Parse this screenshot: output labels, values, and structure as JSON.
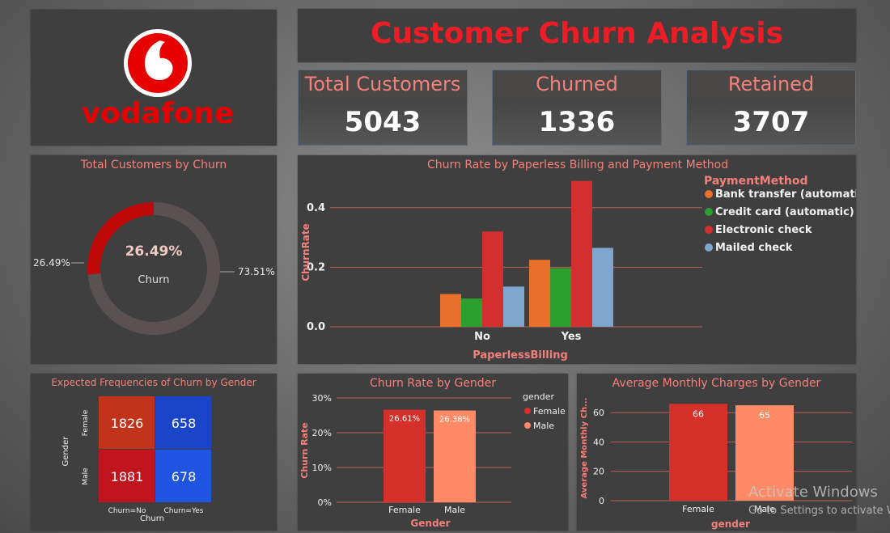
{
  "header": {
    "logo_text": "vodafone",
    "title": "Customer Churn Analysis"
  },
  "kpis": [
    {
      "label": "Total Customers",
      "value": "5043"
    },
    {
      "label": "Churned",
      "value": "1336"
    },
    {
      "label": "Retained",
      "value": "3707"
    }
  ],
  "colors": {
    "accent_red": "#ee1c25",
    "title_pink": "#f4807a",
    "bank_transfer": "#e8702a",
    "credit_card": "#2ca02c",
    "electronic_check": "#d32f2f",
    "mailed_check": "#7ea6cf",
    "female": "#d6302b",
    "male": "#ff8a65"
  },
  "watermark": {
    "line1": "Activate Windows",
    "line2": "Go to Settings to activate W"
  },
  "chart_data": [
    {
      "id": "donut",
      "type": "pie",
      "title": "Total Customers by Churn",
      "center_value": "26.49%",
      "center_label": "Churn",
      "slices": [
        {
          "value": 26.49,
          "label": "26.49%"
        },
        {
          "value": 73.51,
          "label": "73.51%"
        }
      ]
    },
    {
      "id": "paperless",
      "type": "bar",
      "title": "Churn Rate by Paperless Billing and Payment Method",
      "xlabel": "PaperlessBilling",
      "ylabel": "ChurnRate",
      "legend_title": "PaymentMethod",
      "categories": [
        "No",
        "Yes"
      ],
      "ylim": [
        0,
        0.5
      ],
      "yticks": [
        0.0,
        0.2,
        0.4
      ],
      "ytick_labels": [
        "0.0",
        "0.2",
        "0.4"
      ],
      "series": [
        {
          "name": "Bank transfer (automatic)",
          "values": [
            0.11,
            0.225
          ]
        },
        {
          "name": "Credit card (automatic)",
          "values": [
            0.095,
            0.197
          ]
        },
        {
          "name": "Electronic check",
          "values": [
            0.32,
            0.49
          ]
        },
        {
          "name": "Mailed check",
          "values": [
            0.135,
            0.265
          ]
        }
      ]
    },
    {
      "id": "heatmap",
      "type": "heatmap",
      "title": "Expected Frequencies of Churn by Gender",
      "xlabel": "Churn",
      "ylabel": "Gender",
      "x_categories": [
        "Churn=No",
        "Churn=Yes"
      ],
      "y_categories": [
        "Female",
        "Male"
      ],
      "values": [
        [
          1826,
          658
        ],
        [
          1881,
          678
        ]
      ]
    },
    {
      "id": "gender_rate",
      "type": "bar",
      "title": "Churn Rate by Gender",
      "xlabel": "Gender",
      "ylabel": "Churn Rate",
      "legend_title": "gender",
      "categories": [
        "Female",
        "Male"
      ],
      "values": [
        26.61,
        26.38
      ],
      "value_labels": [
        "26.61%",
        "26.38%"
      ],
      "ylim": [
        0,
        30
      ],
      "yticks": [
        0,
        10,
        20,
        30
      ],
      "ytick_labels": [
        "0%",
        "10%",
        "20%",
        "30%"
      ],
      "legend": [
        "Female",
        "Male"
      ]
    },
    {
      "id": "monthly",
      "type": "bar",
      "title": "Average Monthly Charges by Gender",
      "xlabel": "gender",
      "ylabel": "Average Monthly Ch...",
      "categories": [
        "Female",
        "Male"
      ],
      "values": [
        66,
        65
      ],
      "value_labels": [
        "66",
        "65"
      ],
      "ylim": [
        0,
        70
      ],
      "yticks": [
        0,
        20,
        40,
        60
      ],
      "ytick_labels": [
        "0",
        "20",
        "40",
        "60"
      ]
    }
  ]
}
